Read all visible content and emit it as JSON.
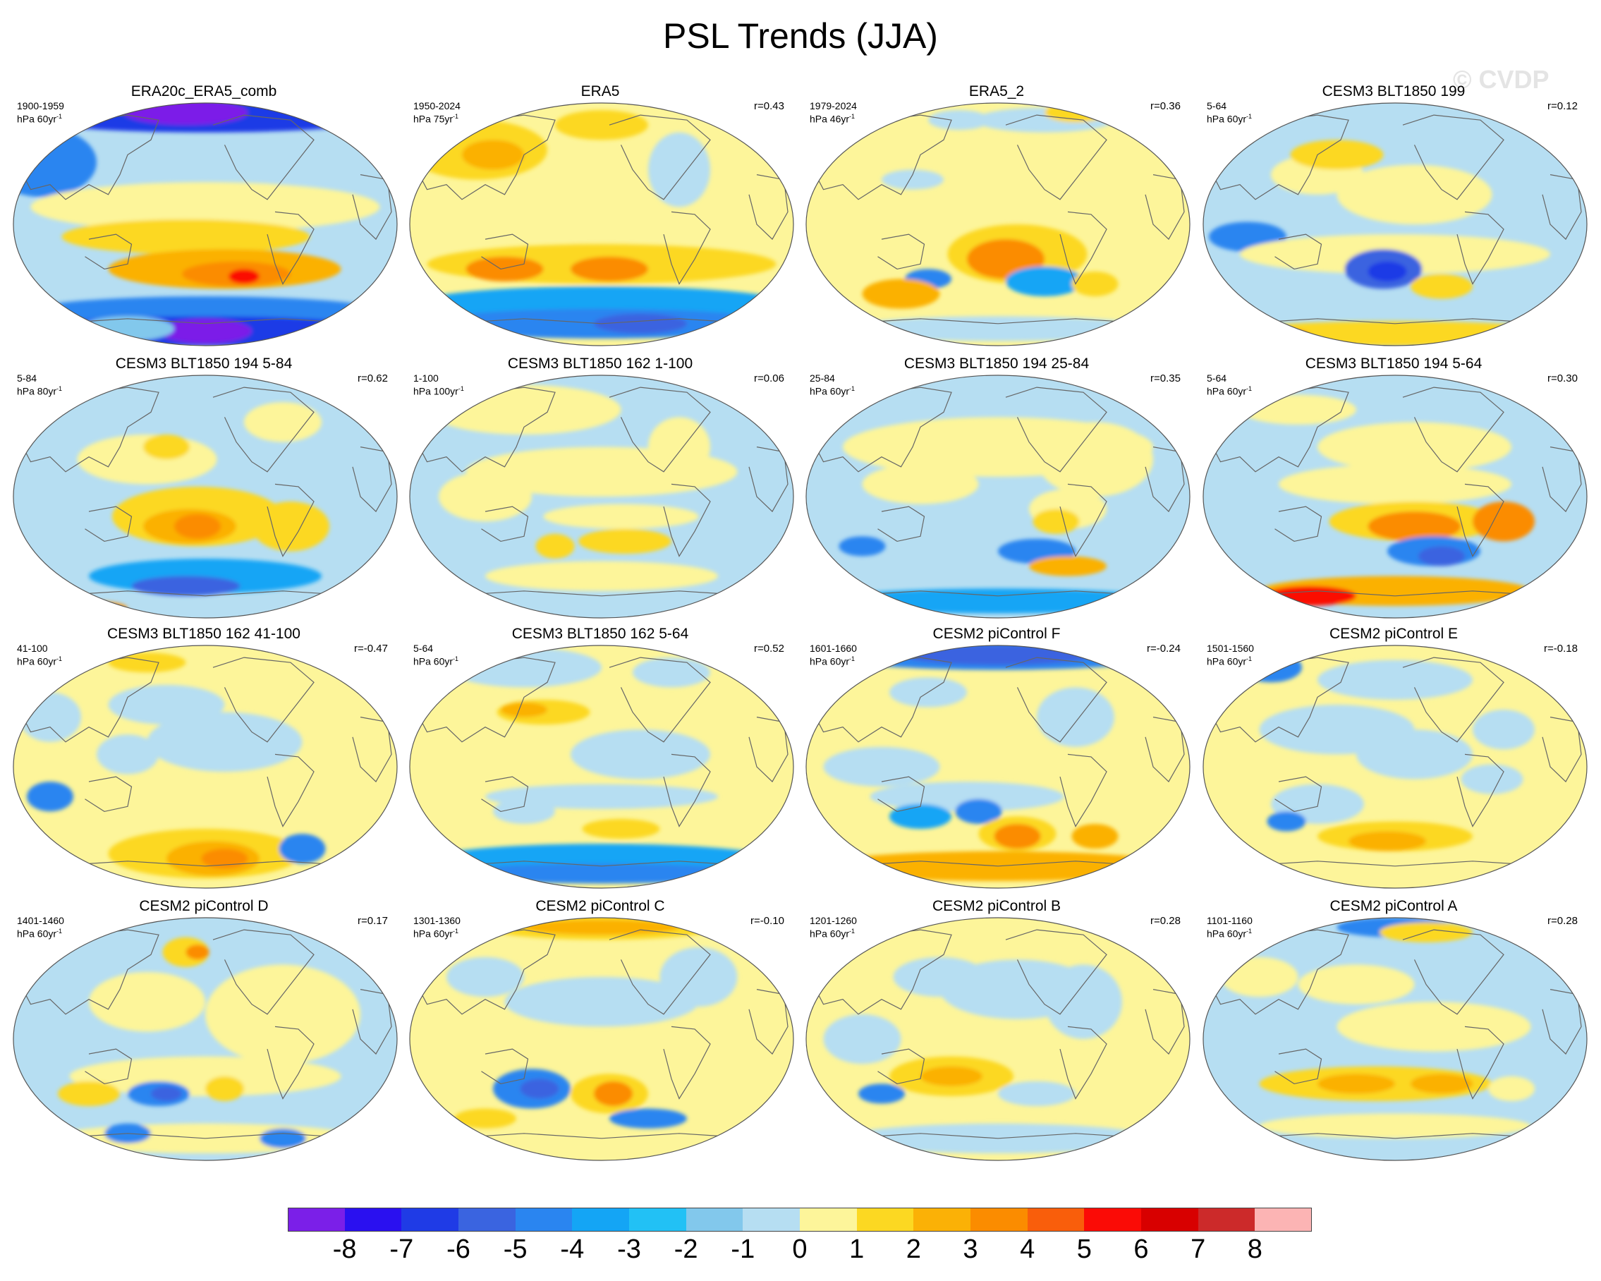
{
  "title": "PSL Trends (JJA)",
  "watermark": "© CVDP",
  "units_prefix": "hPa",
  "units_suffix": "yr",
  "units_exponent": "-1",
  "chart_data": {
    "type": "heatmap",
    "title": "PSL Trends (JJA)",
    "projection": "Robinson (Pacific-centered global maps)",
    "colorbar": {
      "ticks": [
        "-8",
        "-7",
        "-6",
        "-5",
        "-4",
        "-3",
        "-2",
        "-1",
        "0",
        "1",
        "2",
        "3",
        "4",
        "5",
        "6",
        "7",
        "8"
      ],
      "colors": [
        "#7b1fe8",
        "#2a10f0",
        "#1f3be6",
        "#3a64e0",
        "#2a85f0",
        "#14a5f5",
        "#22c1f5",
        "#82c8ec",
        "#b6def2",
        "#fdf59a",
        "#fcd822",
        "#fbb106",
        "#fb8c00",
        "#f95e0b",
        "#fb0b06",
        "#d80000",
        "#cc2a2a",
        "#fcb4b4"
      ]
    },
    "panels": [
      {
        "title": "ERA20c_ERA5_comb",
        "years": "1900-1959",
        "trend_years": "60",
        "r": "",
        "pattern": "p0"
      },
      {
        "title": "ERA5",
        "years": "1950-2024",
        "trend_years": "75",
        "r": "r=0.43",
        "pattern": "p1"
      },
      {
        "title": "ERA5_2",
        "years": "1979-2024",
        "trend_years": "46",
        "r": "r=0.36",
        "pattern": "p2"
      },
      {
        "title": "CESM3 BLT1850 199",
        "years": "5-64",
        "trend_years": "60",
        "r": "r=0.12",
        "pattern": "p3"
      },
      {
        "title": "CESM3 BLT1850 194 5-84",
        "years": "5-84",
        "trend_years": "80",
        "r": "r=0.62",
        "pattern": "p4"
      },
      {
        "title": "CESM3 BLT1850 162 1-100",
        "years": "1-100",
        "trend_years": "100",
        "r": "r=0.06",
        "pattern": "p5"
      },
      {
        "title": "CESM3 BLT1850 194 25-84",
        "years": "25-84",
        "trend_years": "60",
        "r": "r=0.35",
        "pattern": "p6"
      },
      {
        "title": "CESM3 BLT1850 194 5-64",
        "years": "5-64",
        "trend_years": "60",
        "r": "r=0.30",
        "pattern": "p7"
      },
      {
        "title": "CESM3 BLT1850 162 41-100",
        "years": "41-100",
        "trend_years": "60",
        "r": "r=-0.47",
        "pattern": "p8"
      },
      {
        "title": "CESM3 BLT1850 162 5-64",
        "years": "5-64",
        "trend_years": "60",
        "r": "r=0.52",
        "pattern": "p9"
      },
      {
        "title": "CESM2 piControl F",
        "years": "1601-1660",
        "trend_years": "60",
        "r": "r=-0.24",
        "pattern": "p10"
      },
      {
        "title": "CESM2 piControl E",
        "years": "1501-1560",
        "trend_years": "60",
        "r": "r=-0.18",
        "pattern": "p11"
      },
      {
        "title": "CESM2 piControl D",
        "years": "1401-1460",
        "trend_years": "60",
        "r": "r=0.17",
        "pattern": "p12"
      },
      {
        "title": "CESM2 piControl C",
        "years": "1301-1360",
        "trend_years": "60",
        "r": "r=-0.10",
        "pattern": "p13"
      },
      {
        "title": "CESM2 piControl B",
        "years": "1201-1260",
        "trend_years": "60",
        "r": "r=0.28",
        "pattern": "p14"
      },
      {
        "title": "CESM2 piControl A",
        "years": "1101-1160",
        "trend_years": "60",
        "r": "r=0.28",
        "pattern": "p15"
      }
    ]
  }
}
